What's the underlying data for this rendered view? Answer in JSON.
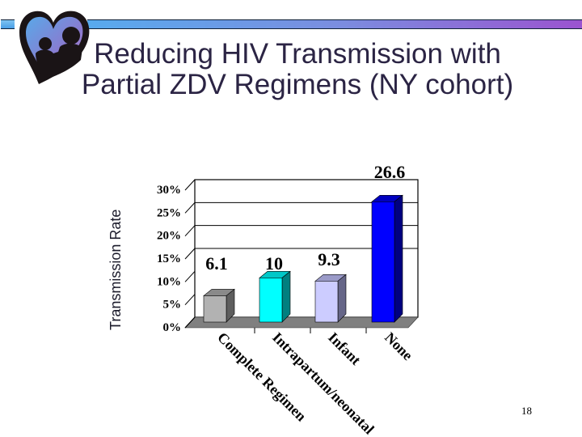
{
  "slide": {
    "title_line1": "Reducing HIV Transmission with",
    "title_line2": "Partial ZDV Regimens (NY cohort)",
    "page_number": "18",
    "logo_icon": "heart-parent-child-logo",
    "accent_bar_colors": [
      "#58aaee",
      "#9a54d0"
    ],
    "title_color": "#2b2444"
  },
  "chart_data": {
    "type": "bar",
    "title": "Reducing HIV Transmission with Partial ZDV Regimens (NY cohort)",
    "xlabel": "",
    "ylabel": "Transmission Rate",
    "categories": [
      "Complete Regimen",
      "Intrapartum/neonatal",
      "Infant",
      "None"
    ],
    "values": [
      6.1,
      10,
      9.3,
      26.6
    ],
    "data_labels": [
      "6.1",
      "10",
      "9.3",
      "26.6"
    ],
    "colors": [
      "#b2b2b2",
      "#00ffff",
      "#ccccff",
      "#0000ff"
    ],
    "yticks": [
      "0%",
      "5%",
      "10%",
      "15%",
      "20%",
      "25%",
      "30%"
    ],
    "ylim": [
      0,
      30
    ],
    "style": "3d-column",
    "grid": true,
    "legend": "none"
  }
}
